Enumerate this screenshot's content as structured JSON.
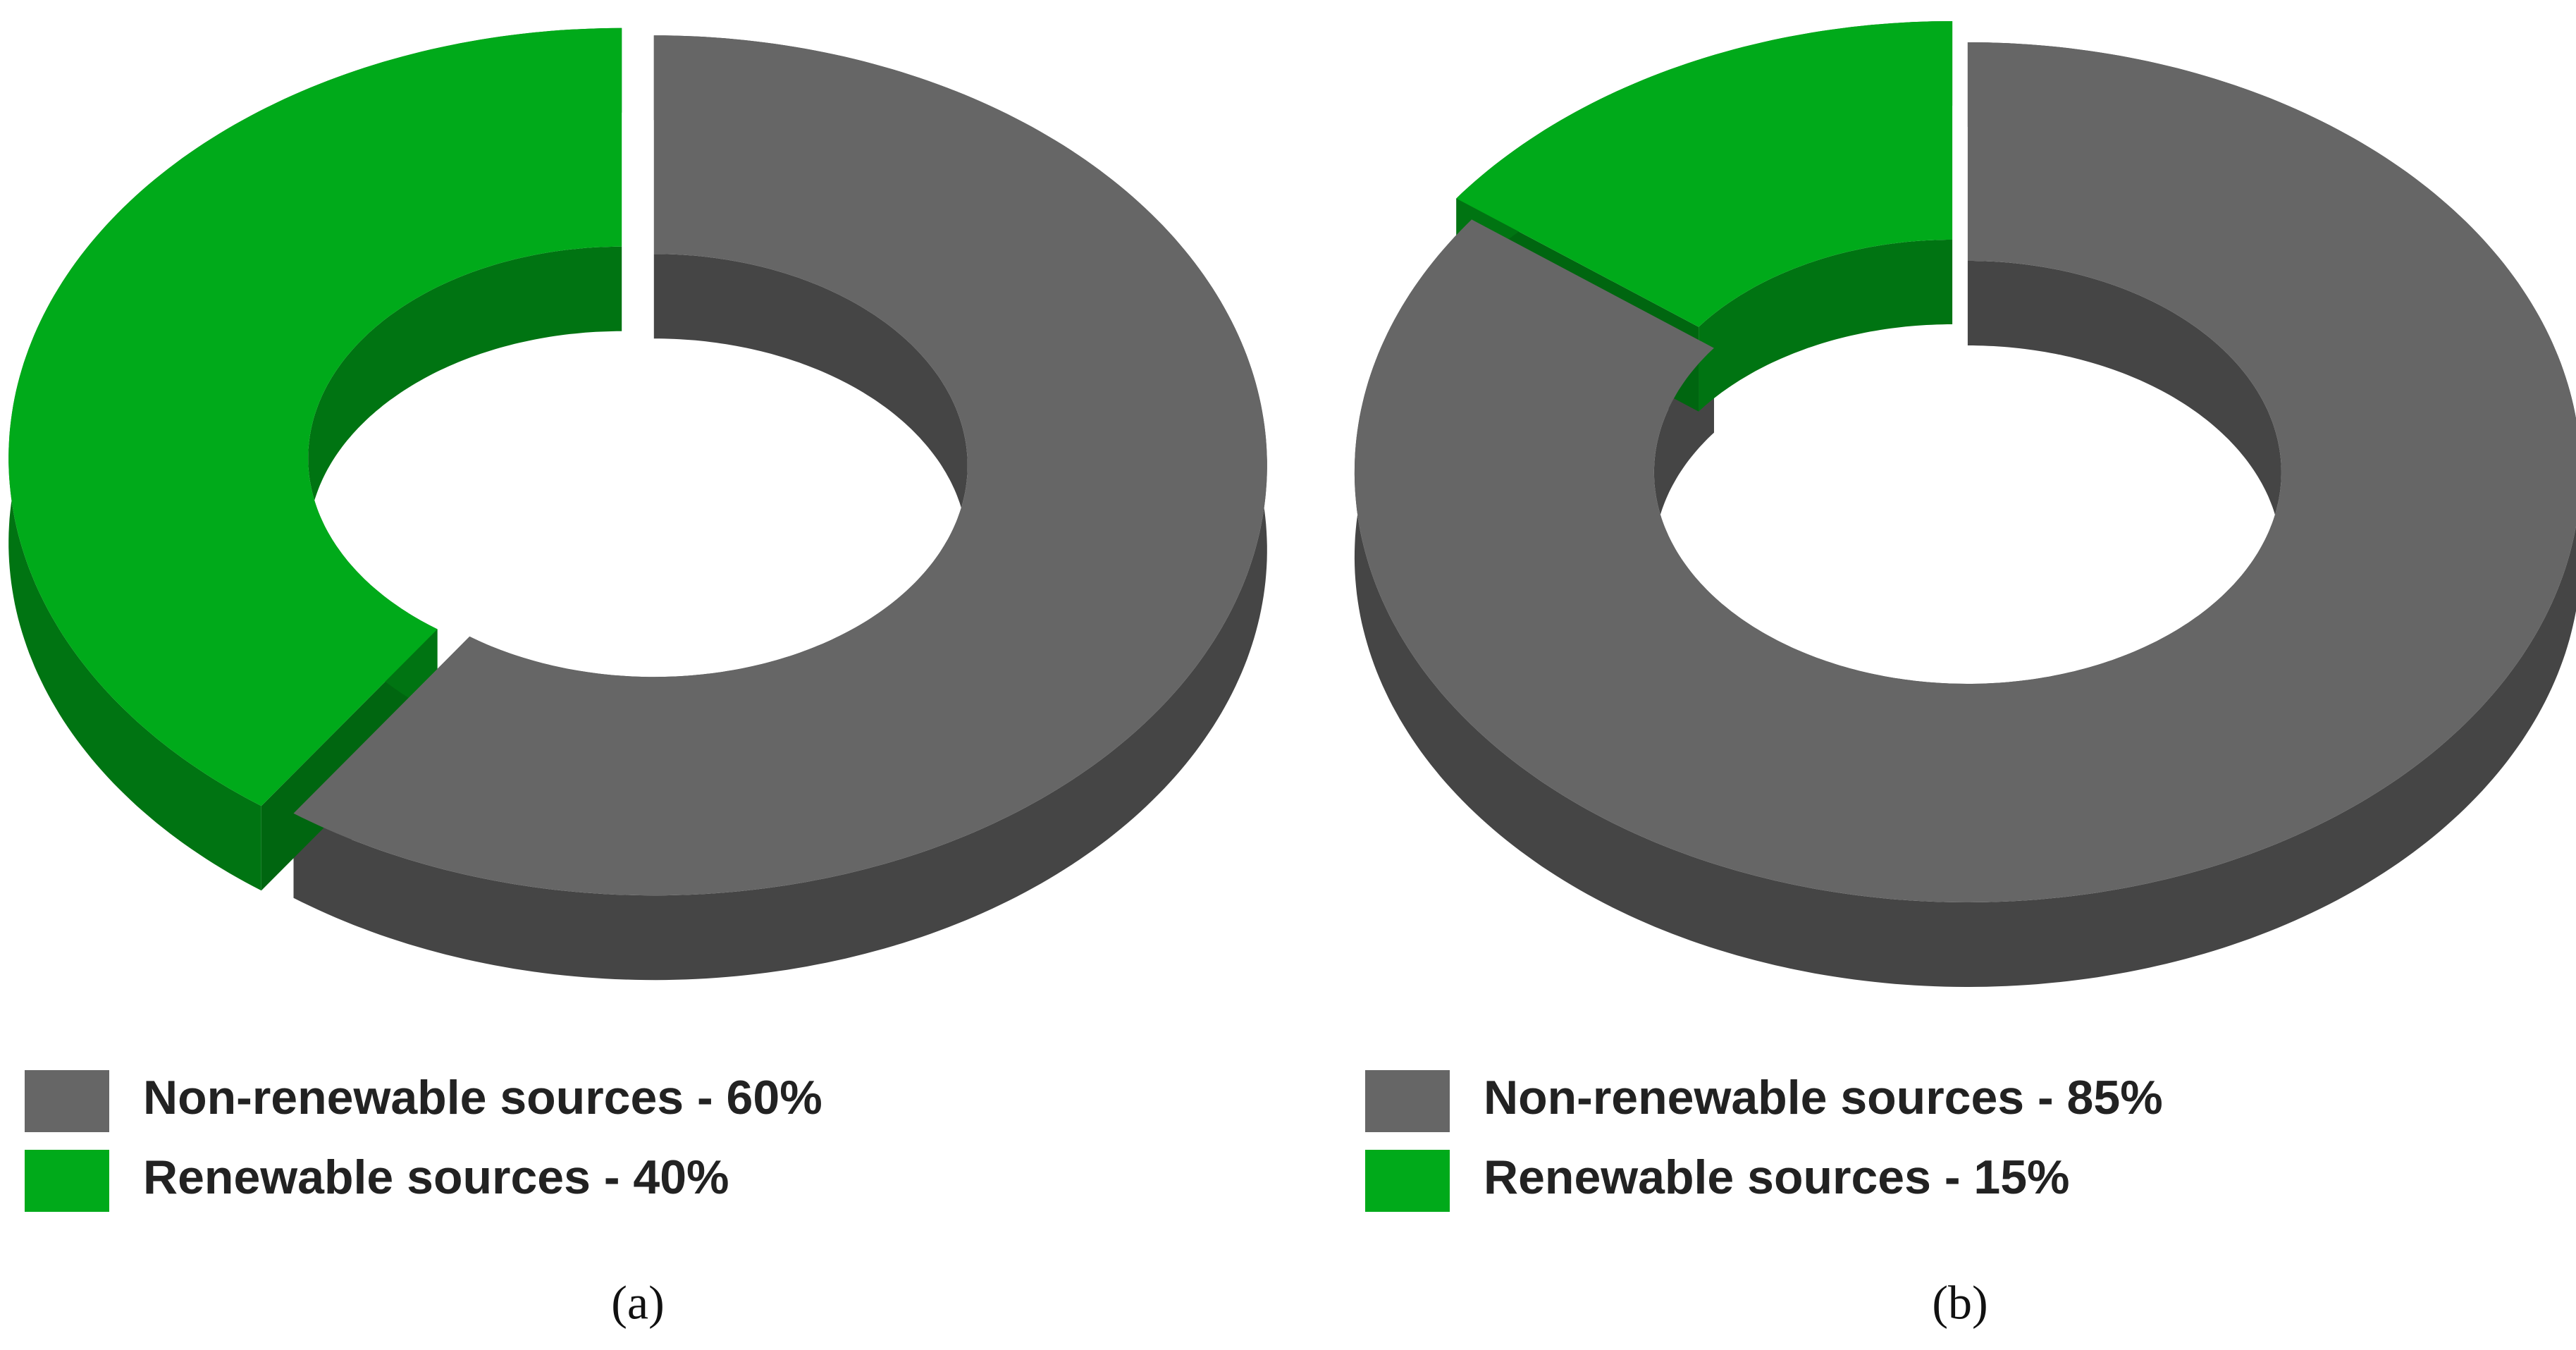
{
  "chart_data": [
    {
      "type": "pie",
      "caption": "(a)",
      "categories": [
        "Non-renewable sources - 60%",
        "Renewable sources - 40%"
      ],
      "values": [
        60,
        40
      ],
      "colors": [
        "#666666",
        "#00aa1a"
      ]
    },
    {
      "type": "pie",
      "caption": "(b)",
      "categories": [
        "Non-renewable sources - 85%",
        "Renewable sources - 15%"
      ],
      "values": [
        85,
        15
      ],
      "colors": [
        "#666666",
        "#00aa1a"
      ]
    }
  ]
}
